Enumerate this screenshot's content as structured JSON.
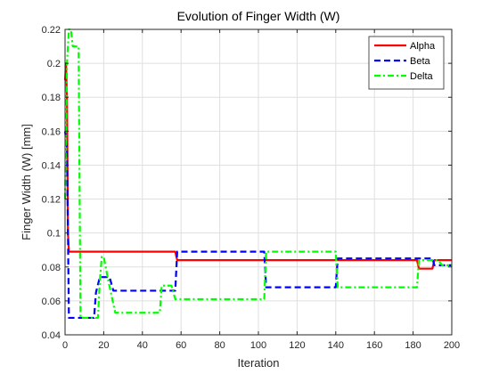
{
  "chart_data": {
    "type": "line",
    "title": "Evolution of Finger Width (W)",
    "xlabel": "Iteration",
    "ylabel": "Finger Width (W) [mm]",
    "xlim": [
      0,
      200
    ],
    "ylim": [
      0.04,
      0.22
    ],
    "xticks": [
      "0",
      "20",
      "40",
      "60",
      "80",
      "100",
      "120",
      "140",
      "160",
      "180",
      "200"
    ],
    "yticks": [
      "0.04",
      "0.06",
      "0.08",
      "0.1",
      "0.12",
      "0.14",
      "0.16",
      "0.18",
      "0.2",
      "0.22"
    ],
    "grid": true,
    "legend_position": "top-right",
    "series": [
      {
        "name": "Alpha",
        "color": "#ff0000",
        "dash": "solid",
        "points": [
          [
            0,
            0.19
          ],
          [
            0.5,
            0.2
          ],
          [
            1,
            0.18
          ],
          [
            1.5,
            0.1
          ],
          [
            2,
            0.089
          ],
          [
            57,
            0.089
          ],
          [
            58,
            0.084
          ],
          [
            182,
            0.084
          ],
          [
            183,
            0.079
          ],
          [
            190,
            0.079
          ],
          [
            191,
            0.084
          ],
          [
            200,
            0.084
          ]
        ]
      },
      {
        "name": "Beta",
        "color": "#0000ff",
        "dash": "dashed",
        "points": [
          [
            0,
            0.16
          ],
          [
            1,
            0.15
          ],
          [
            2,
            0.05
          ],
          [
            15,
            0.05
          ],
          [
            16,
            0.065
          ],
          [
            18,
            0.074
          ],
          [
            23,
            0.074
          ],
          [
            25,
            0.066
          ],
          [
            57,
            0.066
          ],
          [
            58,
            0.089
          ],
          [
            103,
            0.089
          ],
          [
            104,
            0.068
          ],
          [
            140,
            0.068
          ],
          [
            141,
            0.085
          ],
          [
            190,
            0.085
          ],
          [
            191,
            0.081
          ],
          [
            200,
            0.081
          ]
        ]
      },
      {
        "name": "Delta",
        "color": "#00ff00",
        "dash": "dashdot",
        "points": [
          [
            0,
            0.12
          ],
          [
            1,
            0.2
          ],
          [
            2,
            0.22
          ],
          [
            3,
            0.22
          ],
          [
            4,
            0.21
          ],
          [
            7,
            0.21
          ],
          [
            8,
            0.05
          ],
          [
            17,
            0.05
          ],
          [
            18,
            0.072
          ],
          [
            19,
            0.086
          ],
          [
            20,
            0.086
          ],
          [
            22,
            0.074
          ],
          [
            25,
            0.058
          ],
          [
            26,
            0.053
          ],
          [
            49,
            0.053
          ],
          [
            50,
            0.069
          ],
          [
            55,
            0.069
          ],
          [
            57,
            0.061
          ],
          [
            103,
            0.061
          ],
          [
            104,
            0.089
          ],
          [
            140,
            0.089
          ],
          [
            141,
            0.068
          ],
          [
            182,
            0.068
          ],
          [
            183,
            0.084
          ],
          [
            193,
            0.084
          ],
          [
            195,
            0.081
          ],
          [
            200,
            0.081
          ]
        ]
      }
    ]
  }
}
